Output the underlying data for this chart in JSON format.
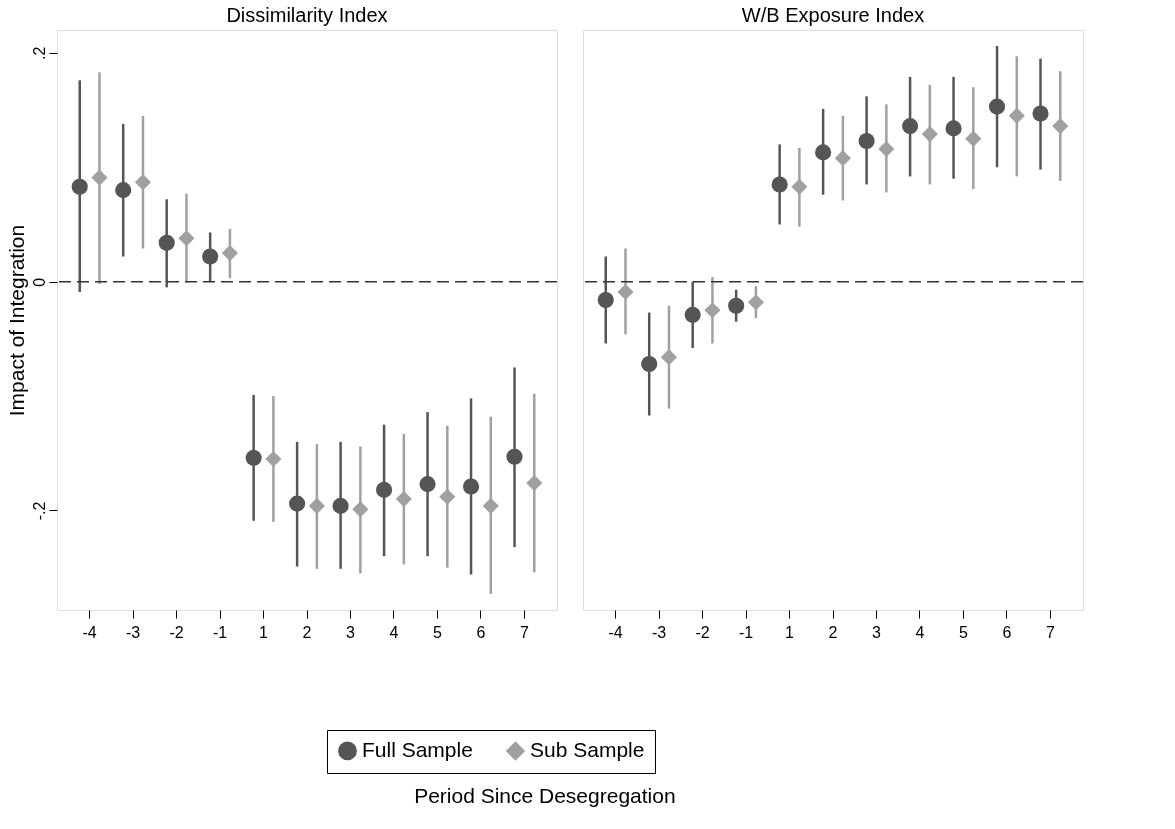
{
  "chart_data": [
    {
      "type": "scatter",
      "title": "Dissimilarity Index",
      "ylabel": "Impact of Integration",
      "xlabel": "Period Since Desegregation",
      "categories": [
        "-4",
        "-3",
        "-2",
        "-1",
        "1",
        "2",
        "3",
        "4",
        "5",
        "6",
        "7"
      ],
      "ylim": [
        -0.287,
        0.22
      ],
      "yticks": [
        {
          "value": -0.2,
          "label": "-.2"
        },
        0,
        {
          "value": 0.2,
          "label": ".2"
        }
      ],
      "legend": "bottom",
      "ref_lines": [
        {
          "axis": "y",
          "value": 0,
          "line_style": "dashed",
          "color": "#333333"
        }
      ],
      "series": [
        {
          "name": "Full Sample",
          "color": "#555555",
          "marker": "circle",
          "values": [
            0.083,
            0.08,
            0.034,
            0.022,
            -0.154,
            -0.194,
            -0.196,
            -0.182,
            -0.177,
            -0.179,
            -0.153
          ],
          "errors": [
            [
              -0.009,
              0.176
            ],
            [
              0.022,
              0.138
            ],
            [
              -0.005,
              0.072
            ],
            [
              0.0,
              0.043
            ],
            [
              -0.209,
              -0.099
            ],
            [
              -0.249,
              -0.14
            ],
            [
              -0.251,
              -0.14
            ],
            [
              -0.24,
              -0.125
            ],
            [
              -0.24,
              -0.114
            ],
            [
              -0.256,
              -0.102
            ],
            [
              -0.232,
              -0.075
            ]
          ]
        },
        {
          "name": "Sub Sample",
          "color": "#a0a0a0",
          "marker": "diamond",
          "values": [
            0.091,
            0.087,
            0.038,
            0.025,
            -0.155,
            -0.196,
            -0.199,
            -0.19,
            -0.188,
            -0.196,
            -0.176
          ],
          "errors": [
            [
              -0.002,
              0.183
            ],
            [
              0.029,
              0.145
            ],
            [
              0.0,
              0.077
            ],
            [
              0.003,
              0.046
            ],
            [
              -0.21,
              -0.1
            ],
            [
              -0.251,
              -0.142
            ],
            [
              -0.255,
              -0.144
            ],
            [
              -0.247,
              -0.133
            ],
            [
              -0.25,
              -0.126
            ],
            [
              -0.273,
              -0.118
            ],
            [
              -0.254,
              -0.098
            ]
          ]
        }
      ]
    },
    {
      "type": "scatter",
      "title": "W/B Exposure Index",
      "categories": [
        "-4",
        "-3",
        "-2",
        "-1",
        "1",
        "2",
        "3",
        "4",
        "5",
        "6",
        "7"
      ],
      "ylim": [
        -0.287,
        0.22
      ],
      "tick_labels": "x",
      "legend": "bottom",
      "ref_lines": [
        {
          "axis": "y",
          "value": 0,
          "line_style": "dashed",
          "color": "#333333"
        }
      ],
      "series": [
        {
          "name": "Full Sample",
          "color": "#555555",
          "marker": "circle",
          "values": [
            -0.016,
            -0.072,
            -0.029,
            -0.021,
            0.085,
            0.113,
            0.123,
            0.136,
            0.134,
            0.153,
            0.147
          ],
          "errors": [
            [
              -0.054,
              0.022
            ],
            [
              -0.117,
              -0.027
            ],
            [
              -0.058,
              0.0
            ],
            [
              -0.035,
              -0.007
            ],
            [
              0.05,
              0.12
            ],
            [
              0.076,
              0.151
            ],
            [
              0.085,
              0.162
            ],
            [
              0.092,
              0.179
            ],
            [
              0.09,
              0.179
            ],
            [
              0.1,
              0.206
            ],
            [
              0.098,
              0.195
            ]
          ]
        },
        {
          "name": "Sub Sample",
          "color": "#a0a0a0",
          "marker": "diamond",
          "values": [
            -0.009,
            -0.066,
            -0.025,
            -0.018,
            0.083,
            0.108,
            0.116,
            0.129,
            0.125,
            0.145,
            0.136
          ],
          "errors": [
            [
              -0.046,
              0.029
            ],
            [
              -0.111,
              -0.021
            ],
            [
              -0.054,
              0.004
            ],
            [
              -0.032,
              -0.004
            ],
            [
              0.048,
              0.117
            ],
            [
              0.071,
              0.145
            ],
            [
              0.078,
              0.155
            ],
            [
              0.085,
              0.172
            ],
            [
              0.081,
              0.17
            ],
            [
              0.092,
              0.197
            ],
            [
              0.088,
              0.184
            ]
          ]
        }
      ]
    }
  ]
}
